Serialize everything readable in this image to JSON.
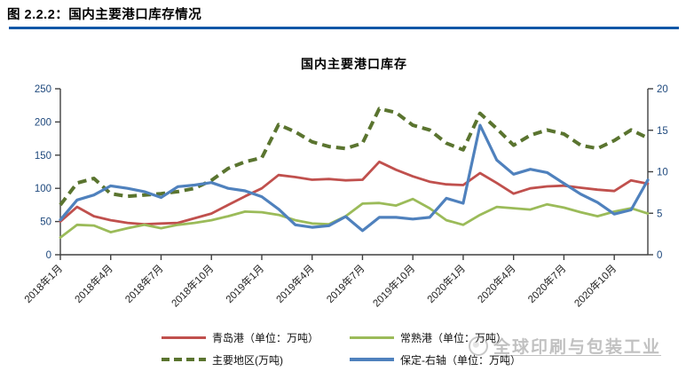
{
  "page": {
    "header": "图 2.2.2：国内主要港口库存情况",
    "accent_color": "#1057A7"
  },
  "watermark": {
    "text": "全球印刷与包装工业"
  },
  "chart_data": {
    "type": "line",
    "title": "国内主要港口库存",
    "xlabel": "",
    "ylabel_left": "",
    "ylabel_right": "",
    "grid": false,
    "legend_position": "bottom",
    "tick_label_color_y": "#1F497D",
    "tick_label_color_x": "#222222",
    "axis_color": "#404040",
    "left_axis": {
      "min": 0,
      "max": 250,
      "ticks": [
        0,
        50,
        100,
        150,
        200,
        250
      ]
    },
    "right_axis": {
      "min": 0,
      "max": 20,
      "ticks": [
        0,
        5,
        10,
        15,
        20
      ]
    },
    "x_tick_step": 3,
    "categories": [
      "2018年1月",
      "2018年2月",
      "2018年3月",
      "2018年4月",
      "2018年5月",
      "2018年6月",
      "2018年7月",
      "2018年8月",
      "2018年9月",
      "2018年10月",
      "2018年11月",
      "2018年12月",
      "2019年1月",
      "2019年2月",
      "2019年3月",
      "2019年4月",
      "2019年5月",
      "2019年6月",
      "2019年7月",
      "2019年8月",
      "2019年9月",
      "2019年10月",
      "2019年11月",
      "2019年12月",
      "2020年1月",
      "2020年2月",
      "2020年3月",
      "2020年4月",
      "2020年5月",
      "2020年6月",
      "2020年7月",
      "2020年8月",
      "2020年9月",
      "2020年10月",
      "2020年11月",
      "2020年12月"
    ],
    "series": [
      {
        "key": "qingdao",
        "name": "青岛港（单位：万吨）",
        "axis": "left",
        "color": "#C0504D",
        "dash": "solid",
        "width": 2.8,
        "values": [
          50,
          72,
          58,
          52,
          48,
          46,
          47,
          48,
          55,
          62,
          75,
          88,
          100,
          120,
          117,
          113,
          114,
          112,
          113,
          140,
          128,
          118,
          110,
          106,
          105,
          123,
          108,
          92,
          100,
          103,
          104,
          101,
          98,
          96,
          112,
          107
        ]
      },
      {
        "key": "changshu",
        "name": "常熟港（单位：万吨）",
        "axis": "left",
        "color": "#9BBB59",
        "dash": "solid",
        "width": 2.8,
        "values": [
          26,
          45,
          44,
          34,
          40,
          45,
          40,
          45,
          48,
          52,
          58,
          65,
          64,
          60,
          52,
          47,
          46,
          58,
          77,
          78,
          74,
          84,
          70,
          52,
          45,
          60,
          72,
          70,
          68,
          76,
          71,
          64,
          58,
          65,
          70,
          62
        ]
      },
      {
        "key": "zhuyaodiqu",
        "name": "主要地区(万吨)",
        "axis": "left",
        "color": "#5A742F",
        "dash": "dashed",
        "width": 4,
        "values": [
          75,
          108,
          115,
          92,
          88,
          90,
          92,
          95,
          100,
          112,
          130,
          140,
          146,
          196,
          185,
          170,
          163,
          160,
          168,
          220,
          214,
          195,
          188,
          168,
          158,
          213,
          190,
          165,
          180,
          188,
          182,
          165,
          160,
          172,
          188,
          176
        ]
      },
      {
        "key": "baoding",
        "name": "保定-右轴（单位：万吨）",
        "axis": "right",
        "color": "#4F81BD",
        "dash": "solid",
        "width": 3.2,
        "values": [
          4.2,
          6.6,
          7.2,
          8.3,
          8.0,
          7.6,
          6.9,
          8.2,
          8.4,
          8.7,
          8.0,
          7.7,
          7.0,
          5.5,
          3.6,
          3.3,
          3.5,
          4.6,
          2.9,
          4.5,
          4.5,
          4.3,
          4.5,
          6.8,
          6.2,
          15.6,
          11.4,
          9.7,
          10.3,
          9.9,
          8.6,
          7.3,
          6.3,
          4.9,
          5.4,
          9.0
        ]
      }
    ]
  }
}
